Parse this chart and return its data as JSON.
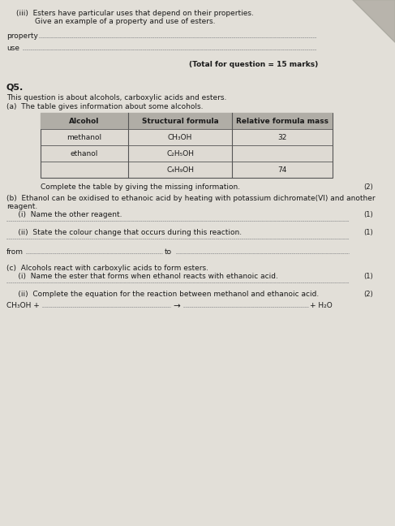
{
  "bg_color": "#ccc9c2",
  "page_bg": "#e2dfd8",
  "text_color": "#1a1a1a",
  "title_iii": "(iii)  Esters have particular uses that depend on their properties.",
  "title_iii2": "        Give an example of a property and use of esters.",
  "property_label": "property",
  "use_label": "use",
  "total_marks": "(Total for question = 15 marks)",
  "q5_label": "Q5.",
  "q5_intro": "This question is about alcohols, carboxylic acids and esters.",
  "q5a_intro": "(a)  The table gives information about some alcohols.",
  "table_headers": [
    "Alcohol",
    "Structural formula",
    "Relative formula mass"
  ],
  "table_rows": [
    [
      "methanol",
      "CH₃OH",
      "32"
    ],
    [
      "ethanol",
      "C₂H₅OH",
      ""
    ],
    [
      "",
      "C₄H₉OH",
      "74"
    ]
  ],
  "complete_table": "Complete the table by giving the missing information.",
  "complete_table_marks": "(2)",
  "b_intro": "(b)  Ethanol can be oxidised to ethanoic acid by heating with potassium dichromate(VI) and another",
  "b_intro2": "reagent.",
  "bi_label": "     (i)  Name the other reagent.",
  "bi_marks": "(1)",
  "bii_label": "     (ii)  State the colour change that occurs during this reaction.",
  "bii_marks": "(1)",
  "from_label": "from",
  "to_label": "to",
  "c_intro": "(c)  Alcohols react with carboxylic acids to form esters.",
  "ci_label": "     (i)  Name the ester that forms when ethanol reacts with ethanoic acid.",
  "ci_marks": "(1)",
  "cii_label": "     (ii)  Complete the equation for the reaction between methanol and ethanoic acid.",
  "cii_marks": "(2)",
  "equation_left": "CH₃OH + ",
  "equation_arrow": "→",
  "equation_right": "+ H₂O",
  "fold_size": 52,
  "dot_color": "#999999",
  "dot_lw": 0.6,
  "fs": 6.5,
  "fs_bold": 7.0,
  "fs_marks": 6.0,
  "table_header_bg": "#b0ada6",
  "table_body_bg": "#dedad3",
  "table_border": "#555555"
}
